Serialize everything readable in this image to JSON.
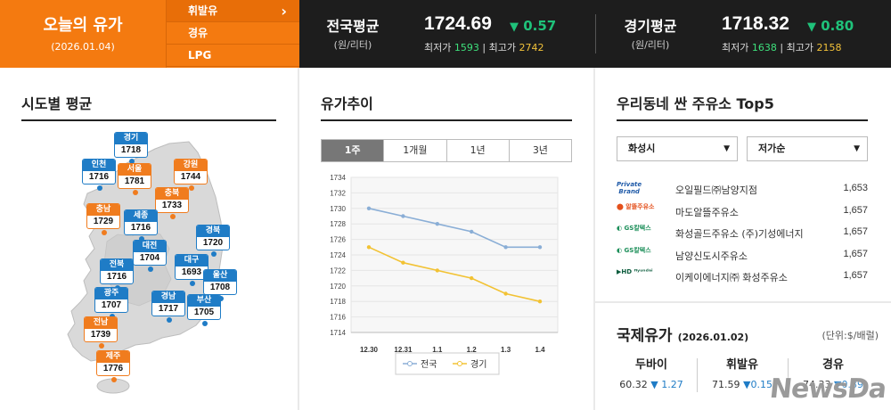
{
  "today": {
    "title": "오늘의 유가",
    "date": "(2026.01.04)"
  },
  "fuel_nav": {
    "items": [
      "휘발유",
      "경유",
      "LPG"
    ],
    "arrow": "›"
  },
  "national": {
    "label": "전국평균",
    "unit": "(원/리터)",
    "price": "1724.69",
    "delta": "0.57",
    "delta_arrow": "▼",
    "min_label": "최저가",
    "min_value": "1593",
    "max_label": "최고가",
    "max_value": "2742",
    "separator": "|"
  },
  "gyeonggi": {
    "label": "경기평균",
    "unit": "(원/리터)",
    "price": "1718.32",
    "delta": "0.80",
    "delta_arrow": "▼",
    "min_label": "최저가",
    "min_value": "1638",
    "max_label": "최고가",
    "max_value": "2158",
    "separator": "|"
  },
  "regional": {
    "title": "시도별 평균",
    "cities": [
      {
        "name": "경기",
        "value": "1718",
        "color": "blue"
      },
      {
        "name": "인천",
        "value": "1716",
        "color": "blue"
      },
      {
        "name": "서울",
        "value": "1781",
        "color": "orange"
      },
      {
        "name": "강원",
        "value": "1744",
        "color": "orange"
      },
      {
        "name": "충북",
        "value": "1733",
        "color": "orange"
      },
      {
        "name": "충남",
        "value": "1729",
        "color": "orange"
      },
      {
        "name": "세종",
        "value": "1716",
        "color": "blue"
      },
      {
        "name": "경북",
        "value": "1720",
        "color": "blue"
      },
      {
        "name": "대전",
        "value": "1704",
        "color": "blue"
      },
      {
        "name": "대구",
        "value": "1693",
        "color": "blue"
      },
      {
        "name": "전북",
        "value": "1716",
        "color": "blue"
      },
      {
        "name": "울산",
        "value": "1708",
        "color": "blue"
      },
      {
        "name": "광주",
        "value": "1707",
        "color": "blue"
      },
      {
        "name": "경남",
        "value": "1717",
        "color": "blue"
      },
      {
        "name": "부산",
        "value": "1705",
        "color": "blue"
      },
      {
        "name": "전남",
        "value": "1739",
        "color": "orange"
      },
      {
        "name": "제주",
        "value": "1776",
        "color": "orange"
      }
    ]
  },
  "trend": {
    "title": "유가추이",
    "tabs": [
      "1주",
      "1개월",
      "1년",
      "3년"
    ],
    "active_tab": "1주"
  },
  "chart_data": {
    "type": "line",
    "x": [
      "12.30",
      "12.31",
      "1.1",
      "1.2",
      "1.3",
      "1.4"
    ],
    "series": [
      {
        "name": "전국",
        "color": "#8aaed6",
        "values": [
          1730,
          1729,
          1728,
          1727,
          1725,
          1725
        ]
      },
      {
        "name": "경기",
        "color": "#f2c233",
        "values": [
          1725,
          1723,
          1722,
          1721,
          1719,
          1718
        ]
      }
    ],
    "yticks": [
      1714,
      1716,
      1718,
      1720,
      1722,
      1724,
      1726,
      1728,
      1730,
      1732,
      1734
    ],
    "ylim": [
      1714,
      1734
    ],
    "grid": true,
    "legend_placement": "bottom"
  },
  "top5": {
    "title": "우리동네 싼 주유소 Top5",
    "region_select": "화성시",
    "sort_select": "저가순",
    "stations": [
      {
        "brand": "Private Brand",
        "name": "오일필드㈜남양지점",
        "price": "1,653"
      },
      {
        "brand": "알뜰주유소",
        "name": "마도알뜰주유소",
        "price": "1,657"
      },
      {
        "brand": "GS칼텍스",
        "name": "화성골드주유소 (주)기성에너지",
        "price": "1,657"
      },
      {
        "brand": "GS칼텍스",
        "name": "남양신도시주유소",
        "price": "1,657"
      },
      {
        "brand": "HD HYUNDAI OILBANK",
        "name": "이케이에너지㈜ 화성주유소",
        "price": "1,657"
      }
    ]
  },
  "intl": {
    "title": "국제유가",
    "date": "(2026.01.02)",
    "unit": "(단위:$/배럴)",
    "items": [
      {
        "name": "두바이",
        "value": "60.32",
        "delta": "▼ 1.27"
      },
      {
        "name": "휘발유",
        "value": "71.59",
        "delta": "▼0.15"
      },
      {
        "name": "경유",
        "value": "74.33",
        "delta": "▼0.89"
      }
    ]
  },
  "watermark": "NewsDa",
  "colors": {
    "accent": "#f47a10",
    "topbar": "#1d1d1d",
    "down": "#1fc27a",
    "blue_badge": "#1f7cc6",
    "orange_badge": "#f07c1e"
  }
}
